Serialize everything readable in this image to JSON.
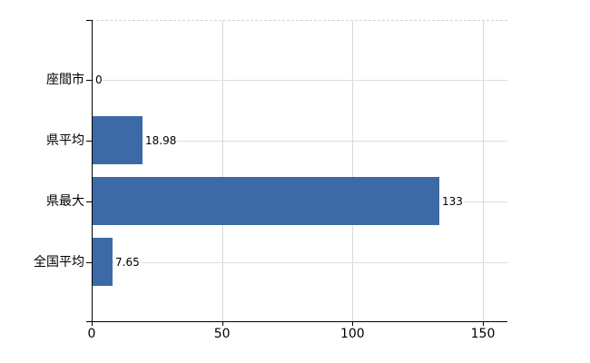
{
  "chart_data": {
    "type": "bar",
    "orientation": "horizontal",
    "title": "",
    "categories": [
      "座間市",
      "県平均",
      "県最大",
      "全国平均"
    ],
    "values": [
      0,
      18.98,
      133,
      7.65
    ],
    "value_labels": [
      "0",
      "18.98",
      "133",
      "7.65"
    ],
    "x_ticks": [
      "0",
      "50",
      "100",
      "150"
    ],
    "x_tick_values": [
      0,
      50,
      100,
      150
    ],
    "xlim": [
      0,
      159
    ],
    "grid": true,
    "legend": false
  },
  "colors": {
    "bar": "#3c6aa6",
    "axis": "#000000",
    "gridline_vertical": "#d9d9d9",
    "gridline_horizontal": "#d9e0d9",
    "plot_border_dashed": "#d2d2d2",
    "background": "#ffffff",
    "text": "#000000"
  }
}
